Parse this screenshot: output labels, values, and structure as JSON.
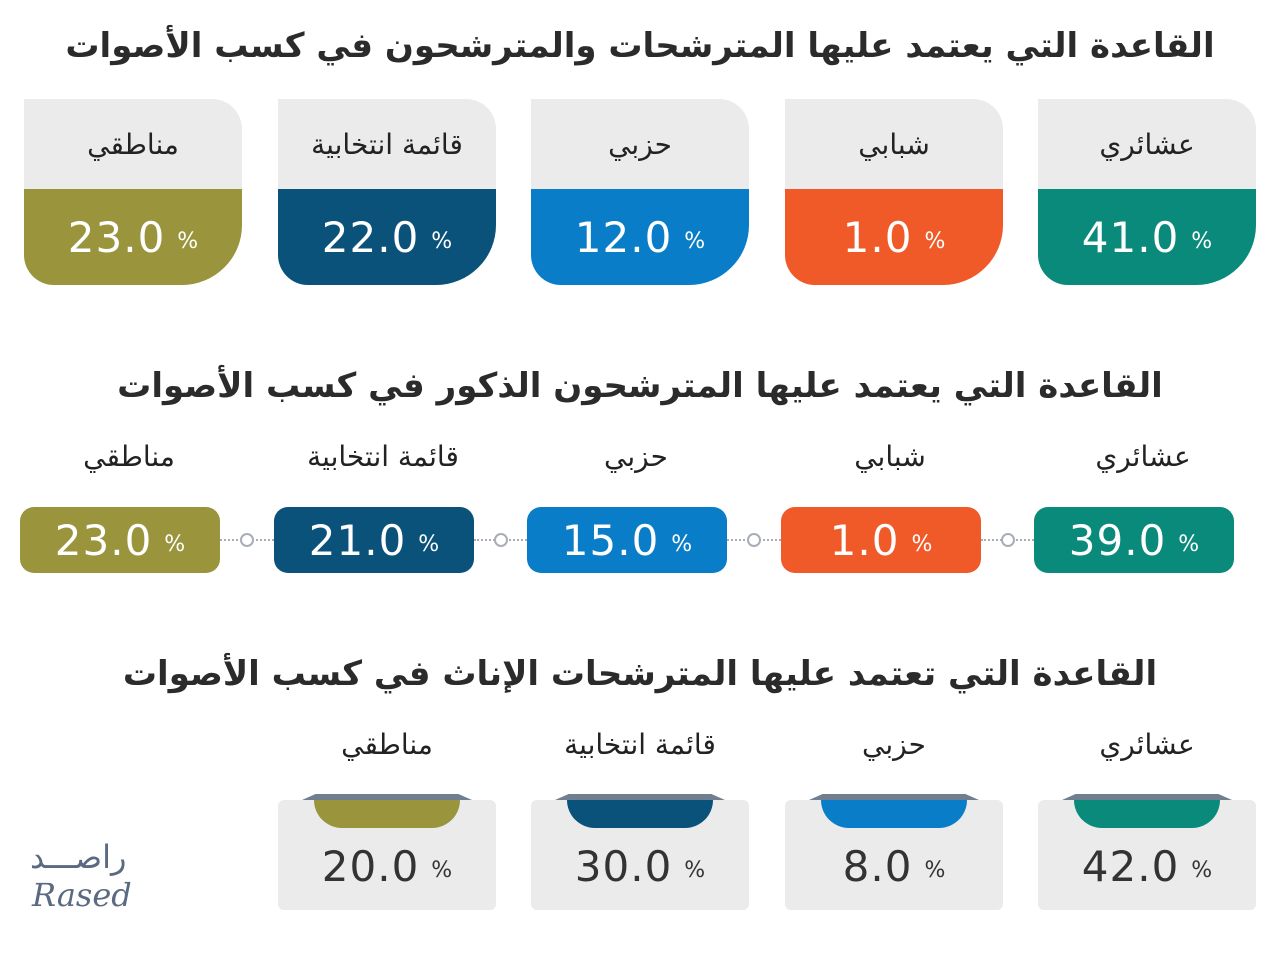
{
  "colors": {
    "tribal": "#0a8a7a",
    "youth": "#f05a28",
    "party": "#0a7dc9",
    "list": "#0a5279",
    "regional": "#9a943c",
    "card_bg": "#ebebeb"
  },
  "chart_data": [
    {
      "type": "bar",
      "title": "القاعدة التي يعتمد عليها المترشحات والمترشحون في كسب الأصوات",
      "categories": [
        "عشائري",
        "شبابي",
        "حزبي",
        "قائمة انتخابية",
        "مناطقي"
      ],
      "values": [
        41.0,
        1.0,
        12.0,
        22.0,
        23.0
      ],
      "value_text": [
        "41.0",
        "1.0",
        "12.0",
        "22.0",
        "23.0"
      ],
      "unit": "%"
    },
    {
      "type": "bar",
      "title": "القاعدة التي يعتمد عليها المترشحون الذكور في كسب الأصوات",
      "categories": [
        "عشائري",
        "شبابي",
        "حزبي",
        "قائمة انتخابية",
        "مناطقي"
      ],
      "values": [
        39.0,
        1.0,
        15.0,
        21.0,
        23.0
      ],
      "value_text": [
        "39.0",
        "1.0",
        "15.0",
        "21.0",
        "23.0"
      ],
      "unit": "%"
    },
    {
      "type": "bar",
      "title": "القاعدة التي تعتمد عليها المترشحات الإناث في كسب الأصوات",
      "categories": [
        "عشائري",
        "حزبي",
        "قائمة انتخابية",
        "مناطقي"
      ],
      "values": [
        42.0,
        8.0,
        30.0,
        20.0
      ],
      "value_text": [
        "42.0",
        "8.0",
        "30.0",
        "20.0"
      ],
      "unit": "%"
    }
  ],
  "logo": {
    "arabic": "راصـــد",
    "latin": "Rased"
  }
}
